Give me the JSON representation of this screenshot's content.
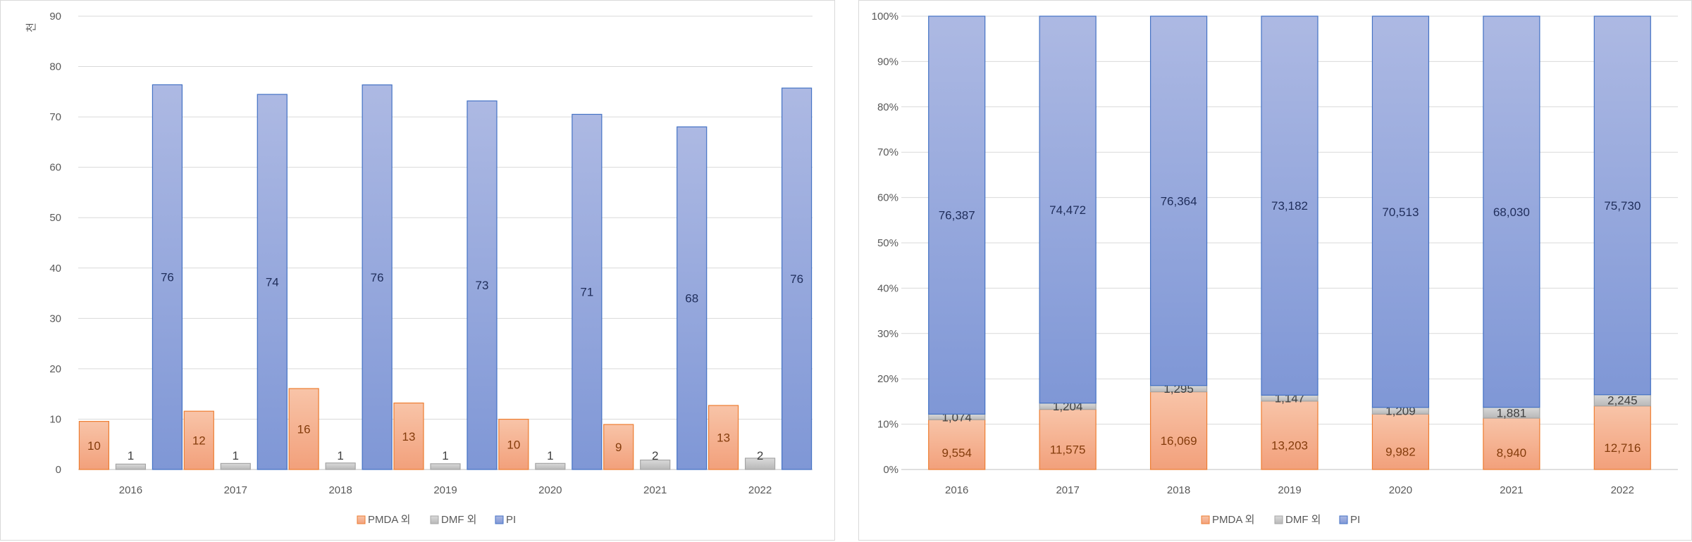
{
  "chart_data": [
    {
      "type": "bar",
      "title": "",
      "ylabel": "천",
      "xlabel": "",
      "ylim": [
        0,
        90
      ],
      "yticks": [
        0,
        10,
        20,
        30,
        40,
        50,
        60,
        70,
        80,
        90
      ],
      "categories": [
        "2016",
        "2017",
        "2018",
        "2019",
        "2020",
        "2021",
        "2022"
      ],
      "grid": true,
      "legend_position": "bottom",
      "series": [
        {
          "name": "PMDA 외",
          "color": "#f4a582",
          "values": [
            9.554,
            11.575,
            16.069,
            13.203,
            9.982,
            8.94,
            12.716
          ],
          "labels": [
            "10",
            "12",
            "16",
            "13",
            "10",
            "9",
            "13"
          ]
        },
        {
          "name": "DMF 외",
          "color": "#bfbfbf",
          "values": [
            1.074,
            1.204,
            1.295,
            1.147,
            1.209,
            1.881,
            2.245
          ],
          "labels": [
            "1",
            "1",
            "1",
            "1",
            "1",
            "2",
            "2"
          ]
        },
        {
          "name": "PI",
          "color": "#8fa3dc",
          "values": [
            76.387,
            74.472,
            76.364,
            73.182,
            70.513,
            68.03,
            75.73
          ],
          "labels": [
            "76",
            "74",
            "76",
            "73",
            "71",
            "68",
            "76"
          ]
        }
      ]
    },
    {
      "type": "bar",
      "stacking": "percent",
      "title": "",
      "xlabel": "",
      "ylabel": "",
      "ylim": [
        0,
        100
      ],
      "yticks": [
        "0%",
        "10%",
        "20%",
        "30%",
        "40%",
        "50%",
        "60%",
        "70%",
        "80%",
        "90%",
        "100%"
      ],
      "categories": [
        "2016",
        "2017",
        "2018",
        "2019",
        "2020",
        "2021",
        "2022"
      ],
      "grid": true,
      "legend_position": "bottom",
      "series": [
        {
          "name": "PMDA 외",
          "color": "#f4a582",
          "values": [
            9554,
            11575,
            16069,
            13203,
            9982,
            8940,
            12716
          ],
          "labels": [
            "9,554",
            "11,575",
            "16,069",
            "13,203",
            "9,982",
            "8,940",
            "12,716"
          ]
        },
        {
          "name": "DMF 외",
          "color": "#bfbfbf",
          "values": [
            1074,
            1204,
            1295,
            1147,
            1209,
            1881,
            2245
          ],
          "labels": [
            "1,074",
            "1,204",
            "1,295",
            "1,147",
            "1,209",
            "1,881",
            "2,245"
          ]
        },
        {
          "name": "PI",
          "color": "#8fa3dc",
          "values": [
            76387,
            74472,
            76364,
            73182,
            70513,
            68030,
            75730
          ],
          "labels": [
            "76,387",
            "74,472",
            "76,364",
            "73,182",
            "70,513",
            "68,030",
            "75,730"
          ]
        }
      ]
    }
  ]
}
